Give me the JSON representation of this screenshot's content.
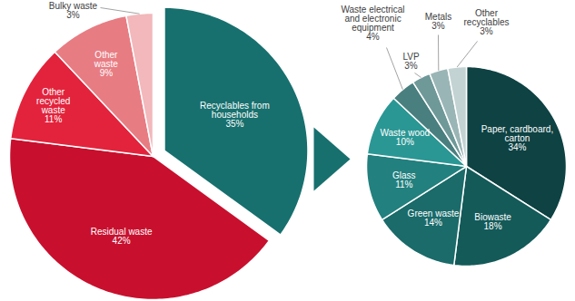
{
  "chart_data": [
    {
      "type": "pie",
      "categories": [
        "Recyclables from households",
        "Residual waste",
        "Other recycled waste",
        "Other waste",
        "Bulky waste"
      ],
      "values": [
        35,
        42,
        11,
        9,
        3
      ],
      "value_labels": [
        "35%",
        "42%",
        "11%",
        "9%",
        "3%"
      ],
      "colors": [
        "#17706e",
        "#c8102e",
        "#e3233c",
        "#e87c83",
        "#f2b8bb"
      ],
      "data_labels": true
    },
    {
      "type": "pie",
      "categories": [
        "Paper, cardboard, carton",
        "Biowaste",
        "Green waste",
        "Glass",
        "Waste wood",
        "Waste electrical and electronic equipment",
        "LVP",
        "Metals",
        "Other recyclables"
      ],
      "values": [
        34,
        18,
        14,
        11,
        10,
        4,
        3,
        3,
        3
      ],
      "value_labels": [
        "34%",
        "18%",
        "14%",
        "11%",
        "10%",
        "4%",
        "3%",
        "3%",
        "3%"
      ],
      "colors": [
        "#0e4243",
        "#135a59",
        "#1a6b6a",
        "#22807e",
        "#2a9794",
        "#4a7f7f",
        "#6f9999",
        "#9ab5b5",
        "#c3d3d3"
      ],
      "data_labels": true
    }
  ]
}
